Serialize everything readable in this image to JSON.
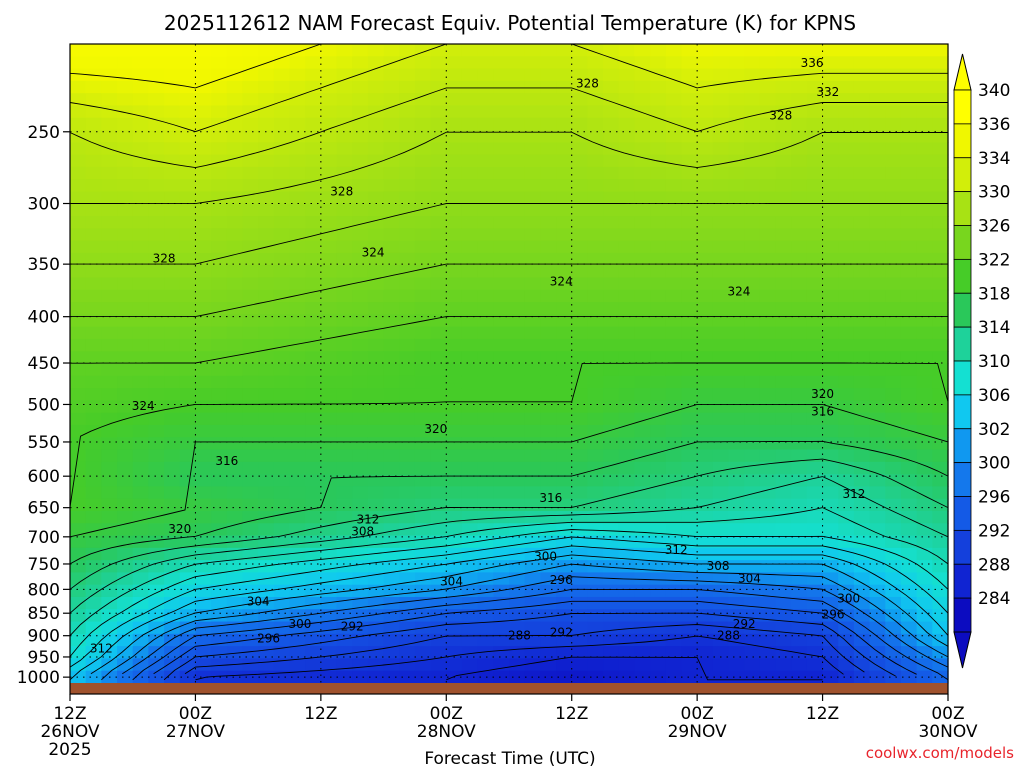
{
  "chart_data": {
    "type": "heatmap",
    "title": "2025112612 NAM Forecast Equiv. Potential Temperature (K) for KPNS",
    "xlabel": "Forecast Time (UTC)",
    "ylabel": "",
    "x_ticks": [
      {
        "hours": 0,
        "label": "12Z",
        "date": "26NOV",
        "year": "2025"
      },
      {
        "hours": 12,
        "label": "00Z",
        "date": "27NOV",
        "year": ""
      },
      {
        "hours": 24,
        "label": "12Z",
        "date": "",
        "year": ""
      },
      {
        "hours": 36,
        "label": "00Z",
        "date": "28NOV",
        "year": ""
      },
      {
        "hours": 48,
        "label": "12Z",
        "date": "",
        "year": ""
      },
      {
        "hours": 60,
        "label": "00Z",
        "date": "29NOV",
        "year": ""
      },
      {
        "hours": 72,
        "label": "12Z",
        "date": "",
        "year": ""
      },
      {
        "hours": 84,
        "label": "00Z",
        "date": "30NOV",
        "year": ""
      }
    ],
    "xlim": [
      0,
      84
    ],
    "y_ticks": [
      250,
      300,
      350,
      400,
      450,
      500,
      550,
      600,
      650,
      700,
      750,
      800,
      850,
      900,
      950,
      1000
    ],
    "ylim": [
      1015,
      200
    ],
    "y_scale": "log-pressure",
    "grid": true,
    "colorbar": {
      "position": "right",
      "labels": [
        340,
        336,
        334,
        330,
        326,
        322,
        318,
        314,
        310,
        306,
        302,
        300,
        296,
        292,
        288,
        284
      ],
      "colors": [
        "#ffff00",
        "#f0f700",
        "#d2ee0a",
        "#a8e214",
        "#78d61e",
        "#46cc28",
        "#2ac85a",
        "#1ed29a",
        "#14e0d2",
        "#10c8f0",
        "#1098f0",
        "#1478ec",
        "#145ae6",
        "#1440dc",
        "#1024d2",
        "#0c0cc0"
      ]
    },
    "profiles": [
      {
        "hours": 0,
        "levels": [
          1000,
          950,
          900,
          850,
          800,
          750,
          700,
          650,
          600,
          550,
          500,
          450,
          400,
          350,
          300,
          250,
          200
        ],
        "theta_e": [
          306,
          310,
          312,
          314,
          316,
          318,
          320,
          322,
          322,
          322,
          323,
          324,
          326,
          328,
          330,
          332,
          338
        ]
      },
      {
        "hours": 12,
        "levels": [
          1000,
          950,
          900,
          850,
          800,
          750,
          700,
          650,
          600,
          550,
          500,
          450,
          400,
          350,
          300,
          250,
          200
        ],
        "theta_e": [
          290,
          294,
          298,
          304,
          308,
          312,
          318,
          320,
          318,
          320,
          322,
          324,
          326,
          328,
          330,
          334,
          338
        ]
      },
      {
        "hours": 36,
        "levels": [
          1000,
          950,
          900,
          850,
          800,
          750,
          700,
          650,
          600,
          550,
          500,
          450,
          400,
          350,
          300,
          250,
          200
        ],
        "theta_e": [
          288,
          290,
          292,
          296,
          302,
          306,
          312,
          316,
          318,
          320,
          322,
          322,
          324,
          326,
          328,
          330,
          334
        ]
      },
      {
        "hours": 48,
        "levels": [
          1000,
          950,
          900,
          850,
          800,
          750,
          700,
          650,
          600,
          550,
          500,
          450,
          400,
          350,
          300,
          250,
          200
        ],
        "theta_e": [
          286,
          288,
          292,
          294,
          298,
          302,
          308,
          316,
          318,
          320,
          322,
          322,
          324,
          326,
          328,
          330,
          334
        ]
      },
      {
        "hours": 60,
        "levels": [
          1000,
          950,
          900,
          850,
          800,
          750,
          700,
          650,
          600,
          550,
          500,
          450,
          400,
          350,
          300,
          250,
          200
        ],
        "theta_e": [
          288,
          288,
          290,
          294,
          298,
          304,
          310,
          314,
          316,
          318,
          320,
          322,
          324,
          326,
          328,
          332,
          336
        ]
      },
      {
        "hours": 72,
        "levels": [
          1000,
          950,
          900,
          850,
          800,
          750,
          700,
          650,
          600,
          550,
          500,
          450,
          400,
          350,
          300,
          250,
          200
        ],
        "theta_e": [
          288,
          290,
          292,
          296,
          300,
          304,
          310,
          312,
          314,
          318,
          320,
          322,
          324,
          326,
          328,
          330,
          336
        ]
      },
      {
        "hours": 84,
        "levels": [
          1000,
          950,
          900,
          850,
          800,
          750,
          700,
          650,
          600,
          550,
          500,
          450,
          400,
          350,
          300,
          250,
          200
        ],
        "theta_e": [
          298,
          302,
          306,
          308,
          310,
          312,
          314,
          316,
          318,
          320,
          322,
          322,
          324,
          326,
          328,
          330,
          336
        ]
      }
    ],
    "contour_labels": [
      {
        "text": "336",
        "hours": 71,
        "p": 210
      },
      {
        "text": "332",
        "hours": 72.5,
        "p": 226
      },
      {
        "text": "328",
        "hours": 49.5,
        "p": 221
      },
      {
        "text": "328",
        "hours": 68,
        "p": 240
      },
      {
        "text": "328",
        "hours": 26,
        "p": 291
      },
      {
        "text": "328",
        "hours": 9,
        "p": 345
      },
      {
        "text": "324",
        "hours": 29,
        "p": 340
      },
      {
        "text": "324",
        "hours": 47,
        "p": 366
      },
      {
        "text": "324",
        "hours": 64,
        "p": 375
      },
      {
        "text": "324",
        "hours": 7,
        "p": 502
      },
      {
        "text": "320",
        "hours": 35,
        "p": 532
      },
      {
        "text": "320",
        "hours": 72,
        "p": 487
      },
      {
        "text": "316",
        "hours": 72,
        "p": 509
      },
      {
        "text": "316",
        "hours": 15,
        "p": 577
      },
      {
        "text": "316",
        "hours": 46,
        "p": 634
      },
      {
        "text": "312",
        "hours": 28.5,
        "p": 670
      },
      {
        "text": "312",
        "hours": 75,
        "p": 628
      },
      {
        "text": "312",
        "hours": 58,
        "p": 724
      },
      {
        "text": "312",
        "hours": 3,
        "p": 930
      },
      {
        "text": "320",
        "hours": 10.5,
        "p": 686
      },
      {
        "text": "308",
        "hours": 28,
        "p": 691
      },
      {
        "text": "308",
        "hours": 62,
        "p": 754
      },
      {
        "text": "304",
        "hours": 65,
        "p": 778
      },
      {
        "text": "304",
        "hours": 36.5,
        "p": 784
      },
      {
        "text": "304",
        "hours": 18,
        "p": 825
      },
      {
        "text": "300",
        "hours": 45.5,
        "p": 736
      },
      {
        "text": "300",
        "hours": 74.5,
        "p": 819
      },
      {
        "text": "300",
        "hours": 22,
        "p": 874
      },
      {
        "text": "296",
        "hours": 47,
        "p": 781
      },
      {
        "text": "296",
        "hours": 73,
        "p": 853
      },
      {
        "text": "296",
        "hours": 19,
        "p": 906
      },
      {
        "text": "292",
        "hours": 27,
        "p": 879
      },
      {
        "text": "292",
        "hours": 47,
        "p": 893
      },
      {
        "text": "292",
        "hours": 64.5,
        "p": 874
      },
      {
        "text": "288",
        "hours": 43,
        "p": 900
      },
      {
        "text": "288",
        "hours": 63,
        "p": 900
      }
    ]
  },
  "credit": "coolwx.com/models"
}
